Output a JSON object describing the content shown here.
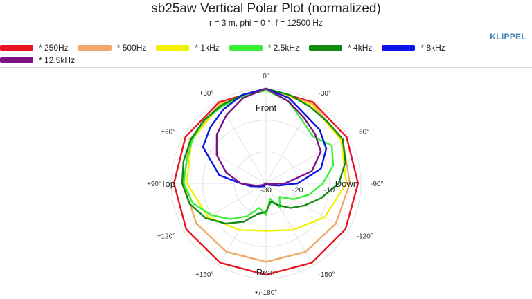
{
  "chart_data": {
    "type": "polar",
    "title": "sb25aw Vertical Polar Plot (normalized)",
    "subtitle": "r = 3 m, phi = 0 °, f = 12500 Hz",
    "radial_ticks": [
      "-30",
      "-20",
      "-10"
    ],
    "radial_range_db": [
      -30,
      0
    ],
    "direction_labels": {
      "top": "Front",
      "bottom": "Rear",
      "left": "Top",
      "right": "Down"
    },
    "angle_labels": [
      {
        "angle": 0,
        "text": "0°"
      },
      {
        "angle": 30,
        "text": "-30°"
      },
      {
        "angle": 60,
        "text": "-60°"
      },
      {
        "angle": 90,
        "text": "-90°"
      },
      {
        "angle": 120,
        "text": "-120°"
      },
      {
        "angle": 150,
        "text": "-150°"
      },
      {
        "angle": 180,
        "text": "+/-180°"
      },
      {
        "angle": 210,
        "text": "+150°"
      },
      {
        "angle": 240,
        "text": "+120°"
      },
      {
        "angle": 270,
        "text": "+90°"
      },
      {
        "angle": 300,
        "text": "+60°"
      },
      {
        "angle": 330,
        "text": "+30°"
      }
    ],
    "series": [
      {
        "name": "* 250Hz",
        "color": "#e8141e",
        "angles_deg": [
          0,
          30,
          60,
          90,
          120,
          150,
          180,
          210,
          240,
          270,
          300,
          330
        ],
        "db": [
          0,
          -0.3,
          -0.6,
          -0.9,
          -1.0,
          -1.0,
          -1.1,
          -1.0,
          -0.9,
          -0.9,
          -0.6,
          -0.3
        ]
      },
      {
        "name": "* 500Hz",
        "color": "#f0a868",
        "angles_deg": [
          0,
          30,
          60,
          90,
          120,
          150,
          180,
          210,
          240,
          270,
          300,
          330
        ],
        "db": [
          0,
          -0.8,
          -2.0,
          -3.5,
          -4.5,
          -5.0,
          -5.2,
          -5.0,
          -4.6,
          -3.8,
          -2.2,
          -0.9
        ]
      },
      {
        "name": "* 1kHz",
        "color": "#f2f200",
        "angles_deg": [
          0,
          30,
          60,
          90,
          120,
          150,
          180,
          210,
          240,
          270,
          300,
          330
        ],
        "db": [
          0,
          -1.2,
          -2.6,
          -4.6,
          -8.6,
          -13.0,
          -15.0,
          -13.0,
          -8.8,
          -5.0,
          -2.8,
          -1.2
        ]
      },
      {
        "name": "* 2.5kHz",
        "color": "#3af03a",
        "angles_deg": [
          0,
          15,
          30,
          45,
          60,
          75,
          90,
          105,
          120,
          135,
          150,
          165,
          180,
          195,
          210,
          225,
          240,
          255,
          270,
          285,
          300,
          315,
          330,
          345
        ],
        "db": [
          -0.5,
          -3,
          -7,
          -9,
          -6,
          -8,
          -12,
          -16,
          -20,
          -24,
          -21,
          -25,
          -20,
          -22,
          -18,
          -14,
          -10,
          -6,
          -4,
          -4,
          -3,
          -2,
          -2,
          -1.5
        ]
      },
      {
        "name": "* 4kHz",
        "color": "#128a12",
        "angles_deg": [
          0,
          15,
          30,
          45,
          60,
          75,
          90,
          105,
          120,
          135,
          150,
          165,
          180,
          195,
          210,
          225,
          240,
          255,
          270,
          285,
          300,
          315,
          330,
          345
        ],
        "db": [
          0,
          -1,
          -2,
          -2.5,
          -2,
          -4,
          -7,
          -12,
          -16,
          -19,
          -22,
          -24,
          -21,
          -20,
          -16,
          -12,
          -8,
          -5,
          -3.5,
          -3,
          -2.5,
          -2,
          -1.5,
          -1
        ]
      },
      {
        "name": "* 8kHz",
        "color": "#0a14e8",
        "angles_deg": [
          0,
          15,
          30,
          45,
          60,
          75,
          90,
          100,
          120,
          150,
          180,
          210,
          240,
          260,
          270,
          280,
          300,
          315,
          330,
          345
        ],
        "db": [
          0,
          -2,
          -5,
          -6,
          -8,
          -12,
          -20,
          -26,
          -29,
          -30,
          -30,
          -29,
          -28,
          -25,
          -22,
          -15,
          -7,
          -5,
          -3,
          -1
        ]
      },
      {
        "name": "* 12.5kHz",
        "color": "#7c1283",
        "angles_deg": [
          0,
          15,
          30,
          45,
          60,
          75,
          90,
          105,
          120,
          150,
          180,
          210,
          240,
          255,
          270,
          285,
          300,
          315,
          330,
          345
        ],
        "db": [
          0,
          -3,
          -6,
          -8,
          -10,
          -15,
          -24,
          -29,
          -30,
          -30,
          -30,
          -30,
          -29,
          -27,
          -22,
          -17,
          -12,
          -8,
          -5,
          -2
        ]
      }
    ]
  },
  "branding": {
    "logo_text": "KLIPPEL"
  }
}
